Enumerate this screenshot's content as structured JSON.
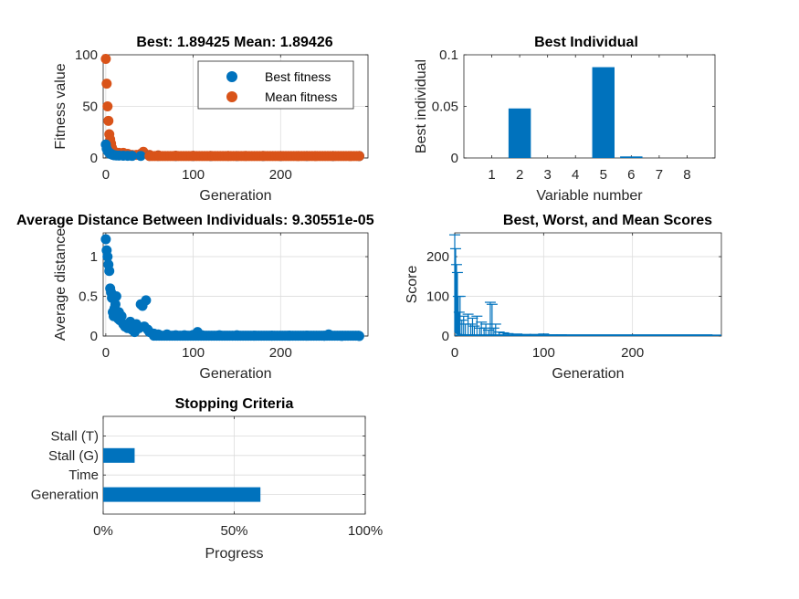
{
  "colors": {
    "blue": "#0072BD",
    "orange": "#D95319",
    "grid": "#dcdcdc",
    "axis": "#262626"
  },
  "chart_data": [
    {
      "type": "scatter",
      "title": "Best: 1.89425 Mean: 1.89426",
      "xlabel": "Generation",
      "ylabel": "Fitness value",
      "xlim": [
        -3,
        300
      ],
      "ylim": [
        0,
        100
      ],
      "xticks": [
        "0",
        "100",
        "200"
      ],
      "yticks": [
        "0",
        "50",
        "100"
      ],
      "grid": true,
      "legend": {
        "placement": "top-right",
        "entries": [
          "Best fitness",
          "Mean fitness"
        ]
      },
      "series": [
        {
          "name": "Best fitness",
          "color": "#0072BD",
          "x": [
            0,
            1,
            2,
            3,
            4,
            5,
            6,
            7,
            8,
            10,
            12,
            15,
            20,
            25,
            30,
            40,
            50,
            60,
            80,
            100,
            120,
            150,
            180,
            200,
            230,
            260,
            290
          ],
          "y": [
            13,
            9,
            7,
            6,
            5,
            4,
            4,
            3.5,
            3,
            2.6,
            2.4,
            2.3,
            2.2,
            2.1,
            2.05,
            2.0,
            1.97,
            1.95,
            1.92,
            1.91,
            1.9,
            1.9,
            1.9,
            1.895,
            1.895,
            1.894,
            1.894
          ]
        },
        {
          "name": "Mean fitness",
          "color": "#D95319",
          "x": [
            0,
            1,
            2,
            3,
            4,
            5,
            6,
            7,
            8,
            10,
            12,
            15,
            20,
            25,
            30,
            35,
            40,
            43,
            50,
            60,
            80,
            100,
            120,
            140,
            160,
            180,
            200,
            220,
            240,
            260,
            280,
            290
          ],
          "y": [
            96,
            72,
            50,
            36,
            23,
            18,
            14,
            10,
            7,
            6,
            4,
            5,
            5,
            4,
            3,
            3,
            4,
            6,
            3,
            2.5,
            2.2,
            2.1,
            2,
            2,
            1.95,
            1.95,
            1.9,
            1.9,
            1.9,
            1.9,
            1.9,
            1.9
          ]
        }
      ]
    },
    {
      "type": "bar",
      "title": "Best Individual",
      "xlabel": "Variable number",
      "ylabel": "Best individual",
      "xlim": [
        0,
        9
      ],
      "ylim": [
        0,
        0.1
      ],
      "yticks": [
        "0",
        "0.05",
        "0.1"
      ],
      "grid": false,
      "categories": [
        "1",
        "2",
        "3",
        "4",
        "5",
        "6",
        "7",
        "8"
      ],
      "values": [
        0,
        0.048,
        0,
        0,
        0.088,
        0.0015,
        0,
        0
      ]
    },
    {
      "type": "scatter",
      "title": "Average Distance Between Individuals: 9.30551e-05",
      "xlabel": "Generation",
      "ylabel": "Average distance",
      "xlim": [
        -3,
        300
      ],
      "ylim": [
        0,
        1.3
      ],
      "xticks": [
        "0",
        "100",
        "200"
      ],
      "yticks": [
        "0",
        "0.5",
        "1"
      ],
      "grid": true,
      "series": [
        {
          "color": "#0072BD",
          "x": [
            0,
            1,
            2,
            3,
            4,
            5,
            6,
            7,
            8,
            9,
            10,
            11,
            12,
            13,
            14,
            15,
            16,
            18,
            20,
            22,
            25,
            28,
            30,
            33,
            35,
            38,
            40,
            42,
            44,
            46,
            48,
            50,
            55,
            60,
            70,
            80,
            90,
            100,
            105,
            110,
            130,
            150,
            170,
            190,
            210,
            230,
            250,
            255,
            270,
            290
          ],
          "y": [
            1.22,
            1.08,
            1.0,
            0.9,
            0.82,
            0.6,
            0.55,
            0.48,
            0.3,
            0.25,
            0.35,
            0.4,
            0.5,
            0.28,
            0.22,
            0.3,
            0.2,
            0.25,
            0.15,
            0.12,
            0.1,
            0.18,
            0.08,
            0.05,
            0.15,
            0.1,
            0.4,
            0.38,
            0.12,
            0.45,
            0.08,
            0.05,
            0.03,
            0.02,
            0.02,
            0.01,
            0.01,
            0.015,
            0.05,
            0.01,
            0.01,
            0.01,
            0.005,
            0.005,
            0.005,
            0.005,
            0.003,
            0.02,
            0.002,
            0.0001
          ]
        }
      ]
    },
    {
      "type": "line",
      "title": "Best, Worst, and Mean Scores",
      "xlabel": "Generation",
      "ylabel": "Score",
      "xlim": [
        0,
        300
      ],
      "ylim": [
        0,
        260
      ],
      "xticks": [
        "0",
        "100",
        "200"
      ],
      "yticks": [
        "0",
        "100",
        "200"
      ],
      "grid": true,
      "series": [
        {
          "color": "#0072BD",
          "x": [
            0,
            1,
            2,
            3,
            4,
            5,
            6,
            8,
            10,
            12,
            15,
            18,
            20,
            22,
            25,
            28,
            30,
            33,
            35,
            38,
            40,
            42,
            44,
            46,
            50,
            55,
            60,
            70,
            80,
            90,
            100,
            110,
            120,
            150,
            200,
            250,
            290
          ],
          "worst": [
            255,
            220,
            180,
            160,
            100,
            60,
            100,
            40,
            50,
            30,
            55,
            30,
            45,
            25,
            50,
            20,
            35,
            20,
            30,
            15,
            85,
            80,
            20,
            30,
            10,
            8,
            6,
            5,
            4,
            4,
            5,
            3,
            3,
            2,
            2,
            2,
            2
          ],
          "best": [
            13,
            9,
            7,
            6,
            5,
            4,
            4,
            3,
            2.6,
            2.4,
            2.3,
            2.2,
            2.2,
            2.1,
            2.1,
            2.05,
            2.05,
            2,
            2,
            2,
            2,
            2,
            2,
            2,
            1.97,
            1.96,
            1.95,
            1.93,
            1.92,
            1.91,
            1.91,
            1.9,
            1.9,
            1.9,
            1.895,
            1.894,
            1.894
          ]
        }
      ]
    },
    {
      "type": "bar",
      "orientation": "horizontal",
      "title": "Stopping Criteria",
      "xlabel": "Progress",
      "xlim": [
        0,
        1
      ],
      "xticks": [
        "0%",
        "50%",
        "100%"
      ],
      "grid": true,
      "categories": [
        "Generation",
        "Time",
        "Stall (G)",
        "Stall (T)"
      ],
      "values": [
        0.6,
        0,
        0.12,
        0
      ]
    }
  ]
}
